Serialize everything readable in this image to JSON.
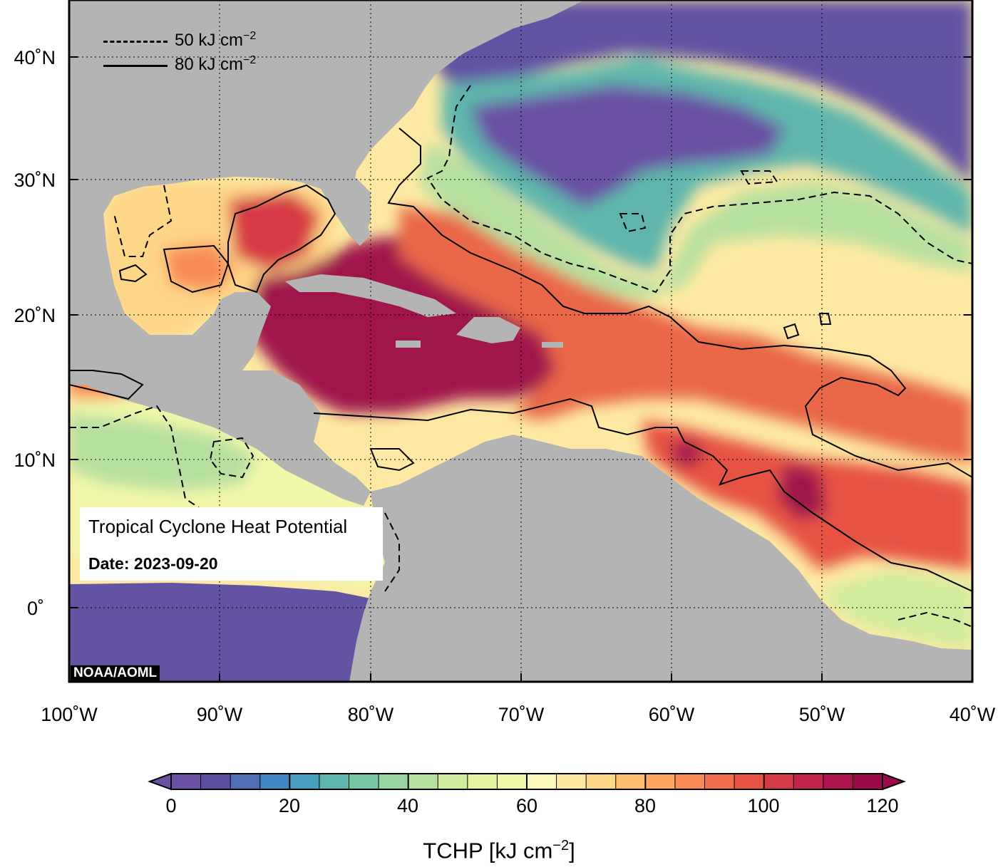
{
  "title": "Tropical Cyclone Heat Potential",
  "date_label": "Date: 2023-09-20",
  "credit": "NOAA/AOML",
  "legend": {
    "dashed_prefix": "50 kJ cm",
    "solid_prefix": "80 kJ cm",
    "exponent": "−2"
  },
  "lat_ticks": [
    "40˚N",
    "30˚N",
    "20˚N",
    "10˚N",
    "0˚"
  ],
  "lon_ticks": [
    "100˚W",
    "90˚W",
    "80˚W",
    "70˚W",
    "60˚W",
    "50˚W",
    "40˚W"
  ],
  "colorbar": {
    "title_prefix": "TCHP [kJ cm",
    "title_exp": "−2",
    "title_suffix": "]",
    "ticks": [
      "0",
      "20",
      "40",
      "60",
      "80",
      "100",
      "120"
    ],
    "min": 0,
    "max": 120,
    "step": 5,
    "colors": [
      "#6a51a3",
      "#5e4fa2",
      "#4f6fb5",
      "#3f86c2",
      "#479ebd",
      "#5eb5ad",
      "#78c5a4",
      "#99d39f",
      "#b6e0a0",
      "#d0ec9f",
      "#e3f3a0",
      "#f1f7aa",
      "#fdf9bd",
      "#fee8a0",
      "#fed688",
      "#fdbf6f",
      "#fca662",
      "#f98b57",
      "#f26e4d",
      "#e65344",
      "#d63b45",
      "#c2254a",
      "#ad144d",
      "#9b0a4a"
    ]
  },
  "colors": {
    "land": "#b4b4b4",
    "deep_ocean": "#6452a3",
    "hot": "#a0124b",
    "warm": "#e9674a",
    "mild": "#fbd88a",
    "cool": "#b8e2a0",
    "teal": "#5fb0a8"
  }
}
